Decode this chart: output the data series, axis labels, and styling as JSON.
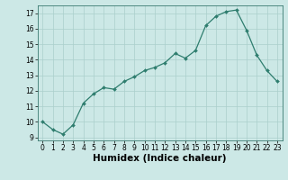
{
  "x": [
    0,
    1,
    2,
    3,
    4,
    5,
    6,
    7,
    8,
    9,
    10,
    11,
    12,
    13,
    14,
    15,
    16,
    17,
    18,
    19,
    20,
    21,
    22,
    23
  ],
  "y": [
    10.0,
    9.5,
    9.2,
    9.8,
    11.2,
    11.8,
    12.2,
    12.1,
    12.6,
    12.9,
    13.3,
    13.5,
    13.8,
    14.4,
    14.1,
    14.6,
    16.2,
    16.8,
    17.1,
    17.2,
    15.9,
    14.3,
    13.3,
    12.6
  ],
  "xlabel": "Humidex (Indice chaleur)",
  "ylim": [
    8.8,
    17.5
  ],
  "xlim": [
    -0.5,
    23.5
  ],
  "yticks": [
    9,
    10,
    11,
    12,
    13,
    14,
    15,
    16,
    17
  ],
  "xticks": [
    0,
    1,
    2,
    3,
    4,
    5,
    6,
    7,
    8,
    9,
    10,
    11,
    12,
    13,
    14,
    15,
    16,
    17,
    18,
    19,
    20,
    21,
    22,
    23
  ],
  "line_color": "#2e7d6e",
  "marker_color": "#2e7d6e",
  "bg_color": "#cce8e6",
  "grid_color": "#aacfcc",
  "tick_fontsize": 5.5,
  "xlabel_fontsize": 7.5
}
